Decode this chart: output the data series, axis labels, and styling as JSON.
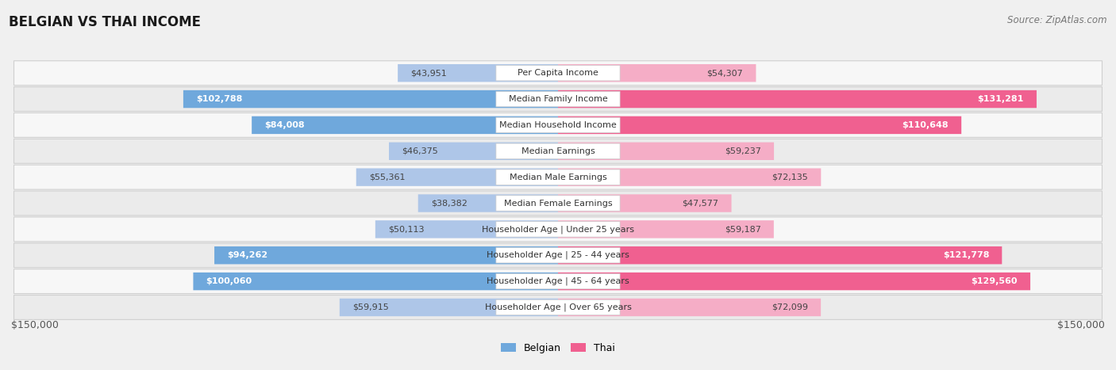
{
  "title": "BELGIAN VS THAI INCOME",
  "source": "Source: ZipAtlas.com",
  "categories": [
    "Per Capita Income",
    "Median Family Income",
    "Median Household Income",
    "Median Earnings",
    "Median Male Earnings",
    "Median Female Earnings",
    "Householder Age | Under 25 years",
    "Householder Age | 25 - 44 years",
    "Householder Age | 45 - 64 years",
    "Householder Age | Over 65 years"
  ],
  "belgian_values": [
    43951,
    102788,
    84008,
    46375,
    55361,
    38382,
    50113,
    94262,
    100060,
    59915
  ],
  "thai_values": [
    54307,
    131281,
    110648,
    59237,
    72135,
    47577,
    59187,
    121778,
    129560,
    72099
  ],
  "belgian_labels": [
    "$43,951",
    "$102,788",
    "$84,008",
    "$46,375",
    "$55,361",
    "$38,382",
    "$50,113",
    "$94,262",
    "$100,060",
    "$59,915"
  ],
  "thai_labels": [
    "$54,307",
    "$131,281",
    "$110,648",
    "$59,237",
    "$72,135",
    "$47,577",
    "$59,187",
    "$121,778",
    "$129,560",
    "$72,099"
  ],
  "max_value": 150000,
  "belgian_color_light": "#aec6e8",
  "belgian_color_dark": "#6fa8dc",
  "thai_color_light": "#f5adc6",
  "thai_color_dark": "#f06090",
  "bg_color": "#f0f0f0",
  "row_bg_even": "#f7f7f7",
  "row_bg_odd": "#ebebeb",
  "category_box_color": "#ffffff",
  "ylabel_left": "$150,000",
  "ylabel_right": "$150,000",
  "legend_belgian": "Belgian",
  "legend_thai": "Thai",
  "title_fontsize": 12,
  "source_fontsize": 8.5,
  "value_fontsize": 8,
  "cat_fontsize": 8,
  "legend_fontsize": 9,
  "axis_fontsize": 9,
  "dark_threshold_bel": 65000,
  "dark_threshold_tha": 80000
}
